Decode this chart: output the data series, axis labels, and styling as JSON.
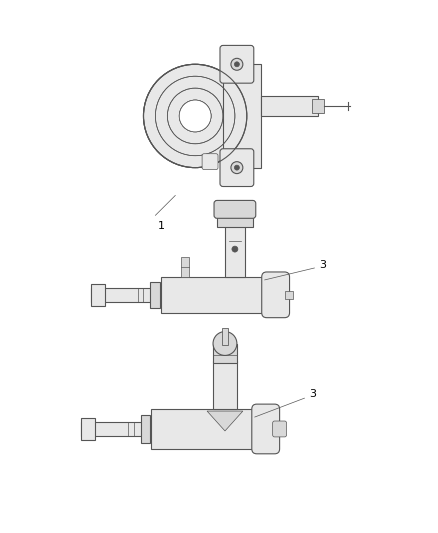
{
  "bg_color": "#ffffff",
  "lc": "#555555",
  "fc": "#e8e8e8",
  "fc2": "#d8d8d8",
  "lw": 0.8,
  "tlw": 0.5,
  "fig_width": 4.38,
  "fig_height": 5.33,
  "label1_text": "1",
  "label3a_text": "3",
  "label3b_text": "3"
}
